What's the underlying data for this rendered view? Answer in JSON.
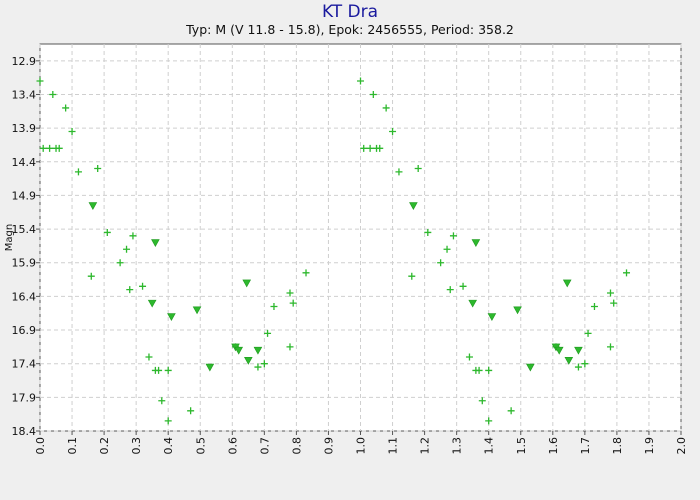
{
  "chart_data": {
    "type": "scatter",
    "title": "KT Dra",
    "subtitle": "Typ: M (V 11.8 - 15.8), Epok: 2456555, Period: 358.2",
    "xlabel": "",
    "ylabel": "Magn",
    "xlim": [
      0.0,
      2.0
    ],
    "ylim": [
      12.65,
      18.4
    ],
    "y_inverted": true,
    "grid": true,
    "x_ticks": [
      "0.0",
      "0.1",
      "0.2",
      "0.3",
      "0.4",
      "0.5",
      "0.6",
      "0.7",
      "0.8",
      "0.9",
      "1.0",
      "1.1",
      "1.2",
      "1.3",
      "1.4",
      "1.5",
      "1.6",
      "1.7",
      "1.8",
      "1.9",
      "2.0"
    ],
    "y_ticks": [
      "12.9",
      "13.4",
      "13.9",
      "14.4",
      "14.9",
      "15.4",
      "15.9",
      "16.4",
      "16.9",
      "17.4",
      "17.9",
      "18.4"
    ],
    "marker_color": "#2db82d",
    "series": [
      {
        "marker": "plus",
        "points": [
          [
            0.0,
            13.2
          ],
          [
            0.01,
            14.2
          ],
          [
            0.03,
            14.2
          ],
          [
            0.04,
            13.4
          ],
          [
            0.05,
            14.2
          ],
          [
            0.06,
            14.2
          ],
          [
            0.08,
            13.6
          ],
          [
            0.1,
            13.95
          ],
          [
            0.12,
            14.55
          ],
          [
            0.16,
            16.1
          ],
          [
            0.18,
            14.5
          ],
          [
            0.21,
            15.45
          ],
          [
            0.25,
            15.9
          ],
          [
            0.27,
            15.7
          ],
          [
            0.28,
            16.3
          ],
          [
            0.29,
            15.5
          ],
          [
            0.32,
            16.25
          ],
          [
            0.34,
            17.3
          ],
          [
            0.36,
            17.5
          ],
          [
            0.37,
            17.5
          ],
          [
            0.38,
            17.95
          ],
          [
            0.4,
            17.5
          ],
          [
            0.4,
            18.25
          ],
          [
            0.47,
            18.1
          ],
          [
            0.61,
            17.15
          ],
          [
            0.68,
            17.45
          ],
          [
            0.7,
            17.4
          ],
          [
            0.71,
            16.95
          ],
          [
            0.73,
            16.55
          ],
          [
            0.78,
            17.15
          ],
          [
            0.78,
            16.35
          ],
          [
            0.79,
            16.5
          ],
          [
            0.83,
            16.05
          ]
        ]
      },
      {
        "marker": "triangle-down",
        "points": [
          [
            0.165,
            15.05
          ],
          [
            0.35,
            16.5
          ],
          [
            0.36,
            15.6
          ],
          [
            0.41,
            16.7
          ],
          [
            0.49,
            16.6
          ],
          [
            0.53,
            17.45
          ],
          [
            0.61,
            17.15
          ],
          [
            0.62,
            17.2
          ],
          [
            0.645,
            16.2
          ],
          [
            0.65,
            17.35
          ],
          [
            0.68,
            17.2
          ]
        ]
      }
    ]
  }
}
